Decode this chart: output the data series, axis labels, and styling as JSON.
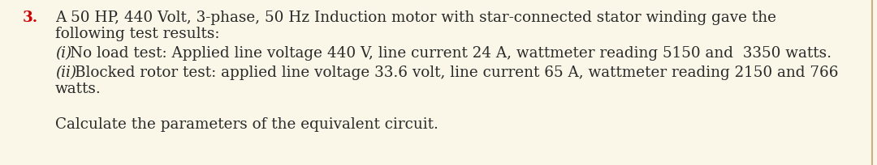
{
  "background_color": "#faf6e8",
  "border_right_color": "#c8b080",
  "number": "3.",
  "number_color": "#cc0000",
  "line1a": "A 50 HP, 440 Volt, 3-phase, 50 Hz Induction motor with star-connected stator winding gave the",
  "line1b": "following test results:",
  "line2_prefix": "(i)",
  "line2_body": "No load test: Applied line voltage 440 V, line current 24 A, wattmeter reading 5150 and  3350 watts.",
  "line3_prefix": "(ii)",
  "line3_body": "Blocked rotor test: applied line voltage 33.6 volt, line current 65 A, wattmeter reading 2150 and 766",
  "line3c": "watts.",
  "line4": "Calculate the parameters of the equivalent circuit.",
  "font_size": 13.2,
  "font_family": "DejaVu Serif",
  "text_color": "#2a2a2a"
}
